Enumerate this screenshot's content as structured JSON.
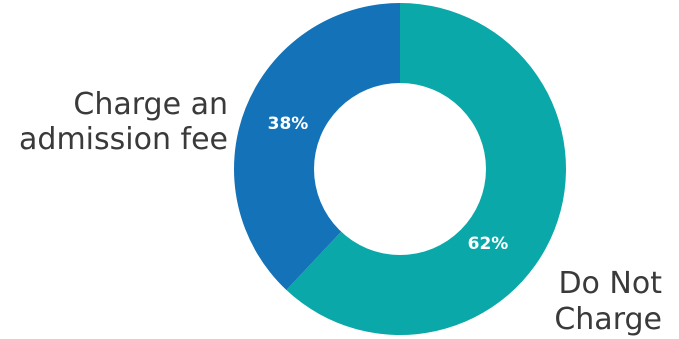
{
  "chart_data": {
    "type": "pie",
    "style": "donut",
    "slices": [
      {
        "label_lines": [
          "Do Not",
          "Charge"
        ],
        "value": 62,
        "data_label": "62%",
        "color": "#0aa8a8"
      },
      {
        "label_lines": [
          "Charge an",
          "admission fee"
        ],
        "value": 38,
        "data_label": "38%",
        "color": "#1372b8"
      }
    ],
    "start_angle_deg": 0,
    "direction": "clockwise",
    "legend": "none"
  }
}
